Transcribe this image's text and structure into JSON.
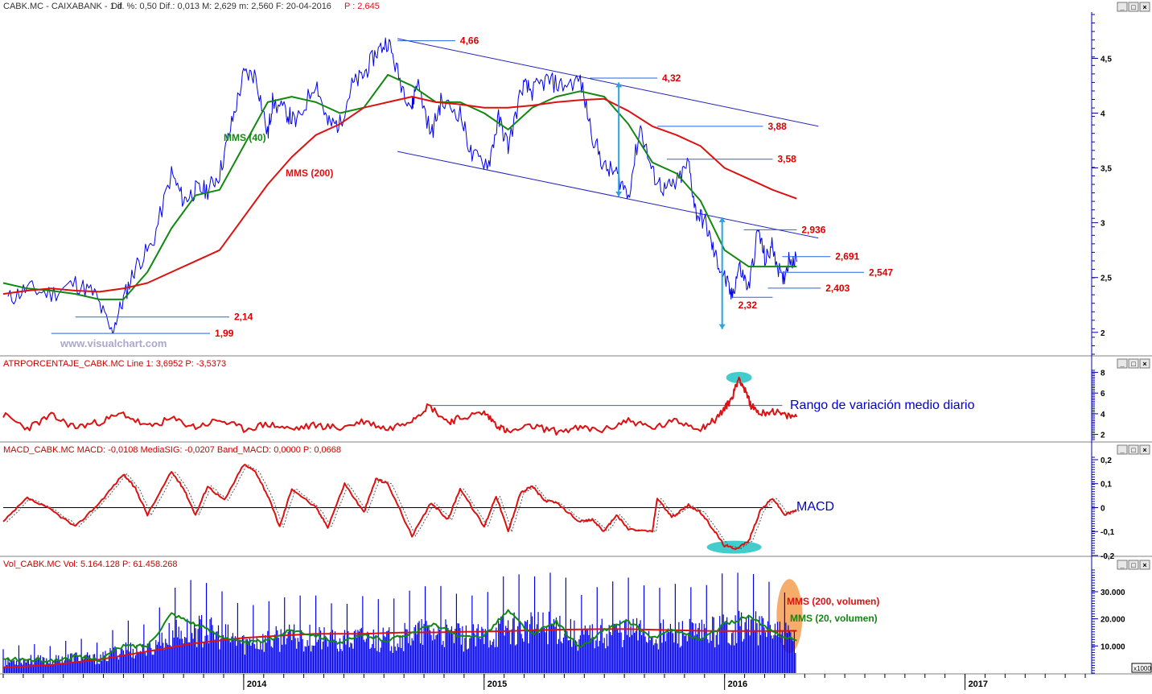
{
  "colors": {
    "price": "#0000ee",
    "mms40": "#118811",
    "mms200": "#dd1111",
    "label_red": "#dd0000",
    "indicator": "#dd1111",
    "axis_blue": "#0000aa",
    "cyan_marker": "#2ba3e0",
    "highlight_cyan": "#44cccc",
    "highlight_orange": "#f5a35a"
  },
  "watermark": "www.visualchart.com",
  "window_buttons": [
    "_",
    "□",
    "×"
  ],
  "x_axis": {
    "ticks": [
      "2014",
      "2015",
      "2016",
      "2017"
    ]
  },
  "chart_data": [
    {
      "type": "line",
      "header": {
        "symbol": "CABK.MC - CAIXABANK - 1 d",
        "stats": "Dif. %: 0,50  Dif.: 0,013  M: 2,629  m: 2,560  F: 20-04-2016",
        "last": "P : 2,645"
      },
      "ylim": [
        1.8,
        4.9
      ],
      "y_ticks": [
        "4,5",
        "4",
        "3,5",
        "3",
        "2,5",
        "2"
      ],
      "y_tick_values": [
        4.5,
        4.0,
        3.5,
        3.0,
        2.5,
        2.0
      ],
      "x_domain": [
        2013.0,
        2017.52
      ],
      "series": [
        {
          "name": "",
          "style": "price",
          "x": [
            2013.02,
            2013.1,
            2013.2,
            2013.3,
            2013.38,
            2013.45,
            2013.5,
            2013.55,
            2013.62,
            2013.7,
            2013.75,
            2013.8,
            2013.85,
            2013.9,
            2013.95,
            2014.0,
            2014.05,
            2014.1,
            2014.12,
            2014.18,
            2014.22,
            2014.3,
            2014.35,
            2014.4,
            2014.45,
            2014.5,
            2014.55,
            2014.6,
            2014.65,
            2014.7,
            2014.72,
            2014.78,
            2014.82,
            2014.9,
            2014.95,
            2015.02,
            2015.06,
            2015.1,
            2015.16,
            2015.2,
            2015.26,
            2015.32,
            2015.4,
            2015.45,
            2015.5,
            2015.55,
            2015.6,
            2015.65,
            2015.7,
            2015.75,
            2015.8,
            2015.85,
            2015.88,
            2015.92,
            2015.96,
            2016.0,
            2016.03,
            2016.06,
            2016.1,
            2016.14,
            2016.17,
            2016.2,
            2016.24,
            2016.27,
            2016.3
          ],
          "y": [
            2.3,
            2.4,
            2.35,
            2.45,
            2.35,
            2.0,
            2.3,
            2.6,
            2.8,
            3.45,
            3.2,
            3.3,
            3.3,
            3.45,
            3.9,
            4.35,
            4.35,
            3.8,
            4.1,
            4.0,
            3.9,
            4.3,
            3.9,
            3.9,
            4.25,
            4.35,
            4.55,
            4.66,
            4.3,
            4.05,
            4.3,
            3.8,
            4.1,
            4.0,
            3.6,
            3.55,
            3.95,
            3.7,
            4.25,
            4.2,
            4.3,
            4.25,
            4.3,
            3.8,
            3.5,
            3.45,
            3.25,
            3.88,
            3.45,
            3.3,
            3.35,
            3.55,
            3.1,
            3.0,
            2.7,
            2.5,
            2.32,
            2.6,
            2.4,
            2.936,
            2.65,
            2.8,
            2.45,
            2.691,
            2.645
          ]
        },
        {
          "name": "MMS (40)",
          "style": "mms40",
          "x": [
            2013.0,
            2013.1,
            2013.2,
            2013.3,
            2013.4,
            2013.5,
            2013.6,
            2013.7,
            2013.8,
            2013.9,
            2014.0,
            2014.1,
            2014.2,
            2014.3,
            2014.4,
            2014.5,
            2014.6,
            2014.7,
            2014.8,
            2014.9,
            2015.0,
            2015.1,
            2015.2,
            2015.3,
            2015.4,
            2015.5,
            2015.6,
            2015.7,
            2015.8,
            2015.9,
            2016.0,
            2016.1,
            2016.2,
            2016.3
          ],
          "y": [
            2.45,
            2.4,
            2.38,
            2.35,
            2.3,
            2.3,
            2.55,
            2.95,
            3.25,
            3.3,
            3.7,
            4.1,
            4.15,
            4.1,
            4.0,
            4.05,
            4.35,
            4.25,
            4.1,
            4.1,
            4.0,
            3.85,
            4.05,
            4.15,
            4.2,
            4.15,
            3.9,
            3.55,
            3.45,
            3.2,
            2.75,
            2.6,
            2.6,
            2.6
          ]
        },
        {
          "name": "MMS (200)",
          "style": "mms200",
          "x": [
            2013.0,
            2013.1,
            2013.2,
            2013.3,
            2013.4,
            2013.5,
            2013.6,
            2013.7,
            2013.8,
            2013.9,
            2014.0,
            2014.1,
            2014.2,
            2014.3,
            2014.4,
            2014.5,
            2014.6,
            2014.7,
            2014.8,
            2014.9,
            2015.0,
            2015.1,
            2015.2,
            2015.3,
            2015.4,
            2015.5,
            2015.6,
            2015.7,
            2015.8,
            2015.9,
            2016.0,
            2016.1,
            2016.2,
            2016.3
          ],
          "y": [
            2.35,
            2.38,
            2.4,
            2.38,
            2.37,
            2.4,
            2.45,
            2.55,
            2.65,
            2.75,
            3.05,
            3.35,
            3.6,
            3.8,
            3.9,
            4.05,
            4.1,
            4.15,
            4.1,
            4.08,
            4.05,
            4.05,
            4.07,
            4.1,
            4.12,
            4.13,
            4.02,
            3.88,
            3.8,
            3.7,
            3.5,
            3.4,
            3.3,
            3.22
          ]
        }
      ],
      "trend_lines": [
        {
          "x": [
            2014.64,
            2016.39
          ],
          "y": [
            4.68,
            3.88
          ]
        },
        {
          "x": [
            2014.64,
            2016.39
          ],
          "y": [
            3.65,
            2.86
          ]
        }
      ],
      "levels": [
        {
          "label": "4,66",
          "y": 4.66,
          "x1": 2014.64,
          "x2": 2014.88
        },
        {
          "label": "4,32",
          "y": 4.32,
          "x1": 2015.44,
          "x2": 2015.72
        },
        {
          "label": "3,88",
          "y": 3.88,
          "x1": 2015.72,
          "x2": 2016.16
        },
        {
          "label": "3,58",
          "y": 3.58,
          "x1": 2015.76,
          "x2": 2016.2
        },
        {
          "label": "2,936",
          "y": 2.936,
          "x1": 2016.08,
          "x2": 2016.3
        },
        {
          "label": "2,691",
          "y": 2.691,
          "x1": 2016.24,
          "x2": 2016.44
        },
        {
          "label": "2,547",
          "y": 2.547,
          "x1": 2016.22,
          "x2": 2016.58
        },
        {
          "label": "2,403",
          "y": 2.403,
          "x1": 2016.18,
          "x2": 2016.4
        },
        {
          "label": "2,32",
          "y": 2.32,
          "x1": 2016.03,
          "x2": 2016.2
        },
        {
          "label": "2,14",
          "y": 2.14,
          "x1": 2013.3,
          "x2": 2013.94
        },
        {
          "label": "1,99",
          "y": 1.99,
          "x1": 2013.2,
          "x2": 2013.86
        }
      ],
      "arrows": [
        {
          "x": 2015.56,
          "y1": 4.28,
          "y2": 3.24
        },
        {
          "x": 2015.99,
          "y1": 3.05,
          "y2": 2.03
        }
      ]
    },
    {
      "type": "line",
      "header": "ATRPORCENTAJE_CABK.MC Line 1: 3,6952  P: -3,5373",
      "ylim": [
        1.5,
        8.2
      ],
      "y_ticks": [
        "8",
        "6",
        "4",
        "2"
      ],
      "y_tick_values": [
        8,
        6,
        4,
        2
      ],
      "annotation": "Rango de variación medio diario",
      "reference_line": {
        "y": 4.8,
        "x1": 2014.77,
        "x2": 2016.24
      },
      "series": [
        {
          "name": "",
          "x": [
            2013.0,
            2013.1,
            2013.2,
            2013.3,
            2013.4,
            2013.5,
            2013.6,
            2013.7,
            2013.8,
            2013.9,
            2014.0,
            2014.1,
            2014.2,
            2014.3,
            2014.4,
            2014.5,
            2014.6,
            2014.7,
            2014.77,
            2014.85,
            2014.9,
            2015.0,
            2015.05,
            2015.1,
            2015.2,
            2015.3,
            2015.4,
            2015.5,
            2015.6,
            2015.7,
            2015.8,
            2015.9,
            2015.96,
            2016.0,
            2016.03,
            2016.06,
            2016.08,
            2016.11,
            2016.15,
            2016.2,
            2016.25,
            2016.3
          ],
          "y": [
            3.9,
            2.6,
            3.8,
            2.7,
            3.2,
            4.0,
            2.7,
            3.5,
            2.7,
            3.4,
            2.5,
            3.0,
            2.5,
            2.9,
            2.6,
            3.3,
            2.5,
            3.5,
            4.8,
            3.2,
            3.6,
            4.1,
            3.0,
            2.2,
            2.8,
            2.3,
            2.6,
            2.4,
            3.4,
            2.6,
            3.3,
            2.6,
            3.4,
            4.5,
            5.5,
            7.5,
            6.5,
            4.8,
            4.0,
            4.3,
            3.8,
            3.7
          ]
        }
      ]
    },
    {
      "type": "line",
      "header": "MACD_CABK.MC MACD: -0,0108  MediaSIG: -0,0207  Band_MACD: 0,0000  P: 0,0668",
      "ylim": [
        -0.2,
        0.21
      ],
      "y_ticks": [
        "0,2",
        "0,1",
        "0",
        "-0,1",
        "-0,2"
      ],
      "y_tick_values": [
        0.2,
        0.1,
        0,
        -0.1,
        -0.2
      ],
      "annotation": "MACD",
      "series": [
        {
          "name": "",
          "x": [
            2013.0,
            2013.1,
            2013.2,
            2013.3,
            2013.4,
            2013.5,
            2013.55,
            2013.6,
            2013.7,
            2013.75,
            2013.8,
            2013.85,
            2013.92,
            2014.0,
            2014.05,
            2014.1,
            2014.15,
            2014.2,
            2014.3,
            2014.35,
            2014.42,
            2014.5,
            2014.55,
            2014.6,
            2014.7,
            2014.78,
            2014.85,
            2014.9,
            2015.0,
            2015.05,
            2015.1,
            2015.15,
            2015.2,
            2015.25,
            2015.3,
            2015.4,
            2015.45,
            2015.5,
            2015.55,
            2015.6,
            2015.7,
            2015.72,
            2015.78,
            2015.85,
            2015.9,
            2015.96,
            2016.0,
            2016.05,
            2016.1,
            2016.15,
            2016.2,
            2016.25,
            2016.3
          ],
          "y": [
            -0.06,
            0.04,
            -0.01,
            -0.08,
            0.02,
            0.14,
            0.08,
            -0.03,
            0.15,
            0.08,
            -0.03,
            0.09,
            0.03,
            0.18,
            0.15,
            0.05,
            -0.08,
            0.08,
            0.0,
            -0.08,
            0.1,
            -0.02,
            0.12,
            0.1,
            -0.12,
            0.02,
            -0.05,
            0.08,
            -0.08,
            0.05,
            -0.1,
            0.06,
            0.09,
            0.03,
            0.02,
            -0.06,
            -0.05,
            -0.1,
            -0.03,
            -0.09,
            -0.1,
            0.04,
            -0.04,
            0.01,
            -0.02,
            -0.1,
            -0.16,
            -0.17,
            -0.14,
            -0.01,
            0.04,
            -0.03,
            -0.01
          ]
        }
      ]
    },
    {
      "type": "bar",
      "header": "Vol_CABK.MC Vol: 5.164.128  P: 61.458.268",
      "unit": "x1000",
      "ylim": [
        0,
        38000
      ],
      "y_ticks": [
        "30.000",
        "20.000",
        "10.000"
      ],
      "y_tick_values": [
        30000,
        20000,
        10000
      ],
      "x": [
        2013.0,
        2013.1,
        2013.2,
        2013.3,
        2013.4,
        2013.5,
        2013.6,
        2013.7,
        2013.8,
        2013.9,
        2014.0,
        2014.1,
        2014.2,
        2014.3,
        2014.4,
        2014.5,
        2014.6,
        2014.7,
        2014.8,
        2014.9,
        2015.0,
        2015.1,
        2015.2,
        2015.3,
        2015.4,
        2015.5,
        2015.6,
        2015.7,
        2015.8,
        2015.9,
        2016.0,
        2016.1,
        2016.2,
        2016.3
      ],
      "values": [
        4000,
        5000,
        4500,
        6000,
        5000,
        9000,
        8000,
        14000,
        16000,
        14000,
        11000,
        12000,
        13000,
        13000,
        11000,
        13000,
        12000,
        14000,
        15000,
        13000,
        13000,
        17000,
        16000,
        18000,
        13000,
        15000,
        16000,
        14000,
        15000,
        14000,
        17000,
        17000,
        15000,
        12000
      ],
      "series": [
        {
          "name": "MMS (200, volumen)",
          "style": "mms200",
          "x": [
            2013.0,
            2013.1,
            2013.2,
            2013.3,
            2013.4,
            2013.5,
            2013.6,
            2013.7,
            2013.8,
            2013.9,
            2014.0,
            2014.1,
            2014.2,
            2014.3,
            2014.4,
            2014.5,
            2014.6,
            2014.7,
            2014.8,
            2014.9,
            2015.0,
            2015.1,
            2015.2,
            2015.3,
            2015.4,
            2015.5,
            2015.6,
            2015.7,
            2015.8,
            2015.9,
            2016.0,
            2016.1,
            2016.2,
            2016.3
          ],
          "y": [
            2000,
            2500,
            3000,
            4000,
            5000,
            6500,
            8000,
            9500,
            11000,
            12000,
            13000,
            13500,
            14000,
            14500,
            14500,
            14500,
            14800,
            15000,
            15000,
            15200,
            15300,
            15500,
            15800,
            16000,
            16100,
            16200,
            16200,
            16000,
            15800,
            15600,
            15500,
            15500,
            15500,
            15600
          ]
        },
        {
          "name": "MMS (20, volumen)",
          "style": "mms40",
          "x": [
            2013.0,
            2013.1,
            2013.2,
            2013.3,
            2013.4,
            2013.5,
            2013.6,
            2013.7,
            2013.8,
            2013.9,
            2014.0,
            2014.1,
            2014.2,
            2014.3,
            2014.4,
            2014.5,
            2014.6,
            2014.7,
            2014.8,
            2014.9,
            2015.0,
            2015.1,
            2015.2,
            2015.3,
            2015.4,
            2015.5,
            2015.6,
            2015.7,
            2015.8,
            2015.9,
            2016.0,
            2016.1,
            2016.2,
            2016.3
          ],
          "y": [
            5000,
            5000,
            4500,
            6000,
            5000,
            10000,
            10000,
            22000,
            18000,
            14000,
            11000,
            12000,
            16000,
            14000,
            11000,
            14000,
            12000,
            15000,
            18000,
            13000,
            14000,
            23000,
            14000,
            19000,
            9000,
            16000,
            19000,
            13000,
            16000,
            12000,
            18000,
            21000,
            15000,
            12000
          ]
        }
      ]
    }
  ]
}
